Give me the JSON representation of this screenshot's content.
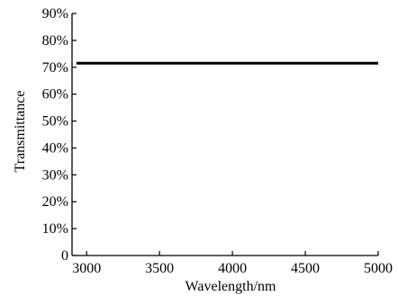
{
  "chart_data": {
    "type": "line",
    "xlabel": "Wavelength/nm",
    "ylabel": "Transmittance",
    "xlim": [
      2900,
      5000
    ],
    "ylim": [
      0,
      90
    ],
    "x_ticks": [
      3000,
      3500,
      4000,
      4500,
      5000
    ],
    "x_tick_labels": [
      "3000",
      "3500",
      "4000",
      "4500",
      "5000"
    ],
    "y_ticks": [
      0,
      10,
      20,
      30,
      40,
      50,
      60,
      70,
      80,
      90
    ],
    "y_tick_labels": [
      "0",
      "10%",
      "20%",
      "30%",
      "40%",
      "50%",
      "60%",
      "70%",
      "80%",
      "90%"
    ],
    "grid": false,
    "series": [
      {
        "x": [
          2930,
          5000
        ],
        "y": [
          71.5,
          71.5
        ],
        "color": "#000000"
      }
    ]
  }
}
